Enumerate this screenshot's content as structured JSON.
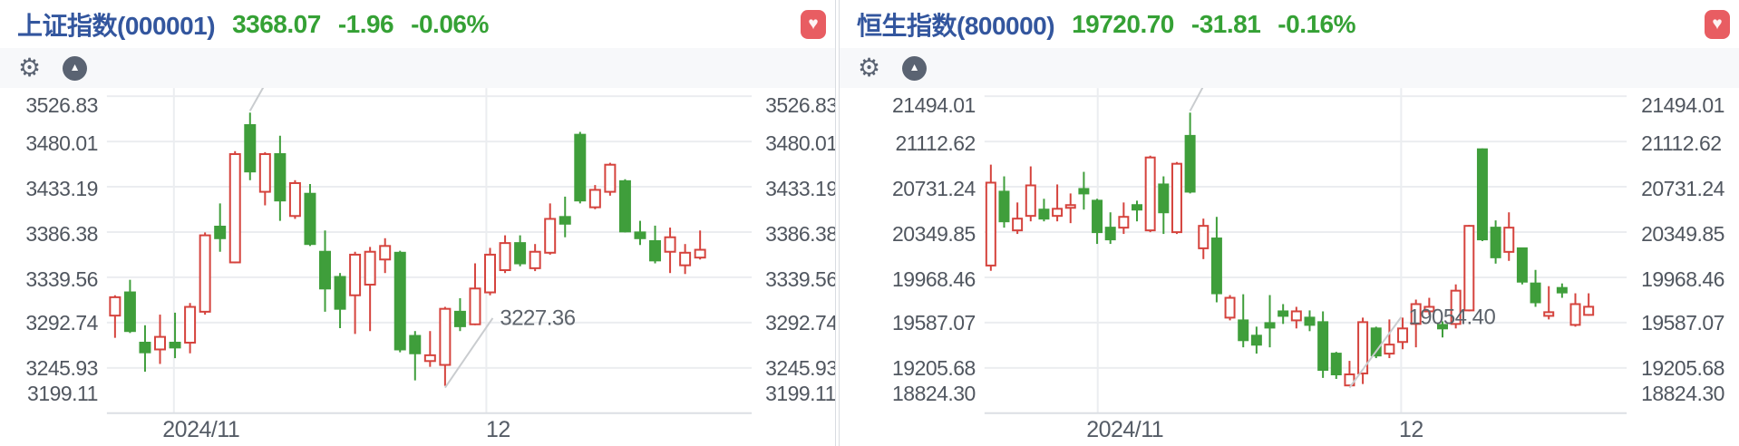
{
  "colors": {
    "title_blue": "#33569e",
    "value_green": "#35a135",
    "candle_up_red": "#d5433d",
    "candle_down_green": "#3f9e3b",
    "favorite_red": "#e85d62",
    "axis_text": "#50565f",
    "x_axis_text": "#555c66",
    "annotation_text": "#5d636b",
    "gridline": "#ebedf0",
    "axis_line": "#dcdfe4",
    "leader_line": "#c9cccf",
    "icon_gray": "#5a6372",
    "toolbar_bg": "#f7f8fa"
  },
  "icons": {
    "settings": "⚙",
    "collapse": "▲",
    "favorite": "♥"
  },
  "panels": [
    {
      "header": {
        "title": "上证指数(000001)",
        "price": "3368.07",
        "change": "-1.96",
        "change_pct": "-0.06%"
      },
      "chart_data": {
        "type": "candlestick",
        "title": "上证指数(000001)",
        "columns": [
          "open",
          "high",
          "low",
          "close"
        ],
        "y_ticks": [
          "3526.83",
          "3480.01",
          "3433.19",
          "3386.38",
          "3339.56",
          "3292.74",
          "3245.93",
          "3199.11"
        ],
        "x_ticks": [
          "2024/11",
          "12"
        ],
        "grid": true,
        "annotations": {
          "high": {
            "value": "3509.82",
            "candle": 9
          },
          "low": {
            "value": "3227.36",
            "candle": 22
          }
        },
        "candles": [
          [
            3300,
            3321,
            3277,
            3319
          ],
          [
            3324,
            3337,
            3282,
            3284
          ],
          [
            3272,
            3290,
            3242,
            3262
          ],
          [
            3265,
            3301,
            3250,
            3278
          ],
          [
            3272,
            3303,
            3256,
            3267
          ],
          [
            3272,
            3313,
            3261,
            3309
          ],
          [
            3304,
            3386,
            3301,
            3383
          ],
          [
            3392,
            3416,
            3366,
            3380
          ],
          [
            3355,
            3470,
            3354,
            3467
          ],
          [
            3497,
            3509.82,
            3440,
            3449
          ],
          [
            3428,
            3469,
            3414,
            3467
          ],
          [
            3467,
            3486,
            3398,
            3419
          ],
          [
            3403,
            3440,
            3400,
            3437
          ],
          [
            3426,
            3436,
            3372,
            3374
          ],
          [
            3366,
            3388,
            3304,
            3328
          ],
          [
            3340,
            3344,
            3287,
            3307
          ],
          [
            3321,
            3366,
            3281,
            3363
          ],
          [
            3332,
            3371,
            3284,
            3366
          ],
          [
            3358,
            3380,
            3344,
            3372
          ],
          [
            3365,
            3367,
            3262,
            3265
          ],
          [
            3279,
            3284,
            3233,
            3261
          ],
          [
            3253,
            3284,
            3247,
            3259
          ],
          [
            3249,
            3309,
            3227.36,
            3307
          ],
          [
            3304,
            3318,
            3284,
            3289
          ],
          [
            3291,
            3354,
            3290,
            3328
          ],
          [
            3324,
            3370,
            3321,
            3363
          ],
          [
            3347,
            3383,
            3344,
            3375
          ],
          [
            3375,
            3383,
            3351,
            3354
          ],
          [
            3349,
            3374,
            3346,
            3366
          ],
          [
            3365,
            3416,
            3363,
            3400
          ],
          [
            3402,
            3423,
            3381,
            3395
          ],
          [
            3487,
            3490,
            3416,
            3419
          ],
          [
            3412,
            3435,
            3410,
            3430
          ],
          [
            3428,
            3458,
            3424,
            3456
          ],
          [
            3439,
            3441,
            3386,
            3387
          ],
          [
            3386,
            3398,
            3373,
            3380
          ],
          [
            3377,
            3393,
            3354,
            3357
          ],
          [
            3366,
            3391,
            3344,
            3381
          ],
          [
            3352,
            3374,
            3343,
            3365
          ],
          [
            3360,
            3388,
            3358,
            3368.07
          ]
        ]
      }
    },
    {
      "header": {
        "title": "恒生指数(800000)",
        "price": "19720.70",
        "change": "-31.81",
        "change_pct": "-0.16%"
      },
      "chart_data": {
        "type": "candlestick",
        "title": "恒生指数(800000)",
        "columns": [
          "open",
          "high",
          "low",
          "close"
        ],
        "y_ticks": [
          "21494.01",
          "21112.62",
          "20731.24",
          "20349.85",
          "19968.46",
          "19587.07",
          "19205.68",
          "18824.30"
        ],
        "x_ticks": [
          "2024/11",
          "12"
        ],
        "grid": true,
        "annotations": {
          "high": {
            "value": "21355.44",
            "candle": 15
          },
          "low": {
            "value": "19054.40",
            "candle": 27
          }
        },
        "candles": [
          [
            20068,
            20918,
            20023,
            20766
          ],
          [
            20690,
            20819,
            20387,
            20440
          ],
          [
            20364,
            20599,
            20334,
            20463
          ],
          [
            20486,
            20903,
            20440,
            20743
          ],
          [
            20539,
            20630,
            20440,
            20463
          ],
          [
            20486,
            20751,
            20440,
            20546
          ],
          [
            20554,
            20675,
            20425,
            20577
          ],
          [
            20713,
            20857,
            20539,
            20675
          ],
          [
            20614,
            20630,
            20250,
            20349
          ],
          [
            20387,
            20516,
            20250,
            20288
          ],
          [
            20387,
            20599,
            20334,
            20478
          ],
          [
            20577,
            20614,
            20440,
            20539
          ],
          [
            20364,
            20993,
            20349,
            20978
          ],
          [
            20751,
            20819,
            20334,
            20516
          ],
          [
            20349,
            20940,
            20334,
            20925
          ],
          [
            21160,
            21355.44,
            20675,
            20690
          ],
          [
            20213,
            20463,
            20122,
            20402
          ],
          [
            20296,
            20478,
            19758,
            19834
          ],
          [
            19629,
            19819,
            19606,
            19796
          ],
          [
            19606,
            19826,
            19379,
            19439
          ],
          [
            19477,
            19553,
            19326,
            19401
          ],
          [
            19583,
            19819,
            19379,
            19545
          ],
          [
            19682,
            19743,
            19576,
            19644
          ],
          [
            19606,
            19720,
            19538,
            19682
          ],
          [
            19629,
            19690,
            19515,
            19568
          ],
          [
            19591,
            19682,
            19121,
            19189
          ],
          [
            19326,
            19341,
            19113,
            19151
          ],
          [
            19058,
            19265,
            19054.4,
            19151
          ],
          [
            19159,
            19629,
            19070,
            19591
          ],
          [
            19538,
            19553,
            19288,
            19310
          ],
          [
            19326,
            19614,
            19288,
            19402
          ],
          [
            19424,
            19629,
            19363,
            19538
          ],
          [
            19576,
            19781,
            19379,
            19743
          ],
          [
            19682,
            19796,
            19652,
            19720
          ],
          [
            19568,
            19598,
            19462,
            19538
          ],
          [
            19576,
            19909,
            19538,
            19856
          ],
          [
            19690,
            20410,
            19682,
            20402
          ],
          [
            21047,
            21054,
            20273,
            20288
          ],
          [
            20387,
            20448,
            20084,
            20137
          ],
          [
            20183,
            20516,
            20107,
            20387
          ],
          [
            20213,
            20220,
            19909,
            19932
          ],
          [
            19917,
            20031,
            19720,
            19758
          ],
          [
            19644,
            19894,
            19614,
            19675
          ],
          [
            19879,
            19917,
            19796,
            19841
          ],
          [
            19568,
            19834,
            19553,
            19743
          ],
          [
            19652,
            19834,
            19645,
            19720.7
          ]
        ]
      }
    }
  ]
}
